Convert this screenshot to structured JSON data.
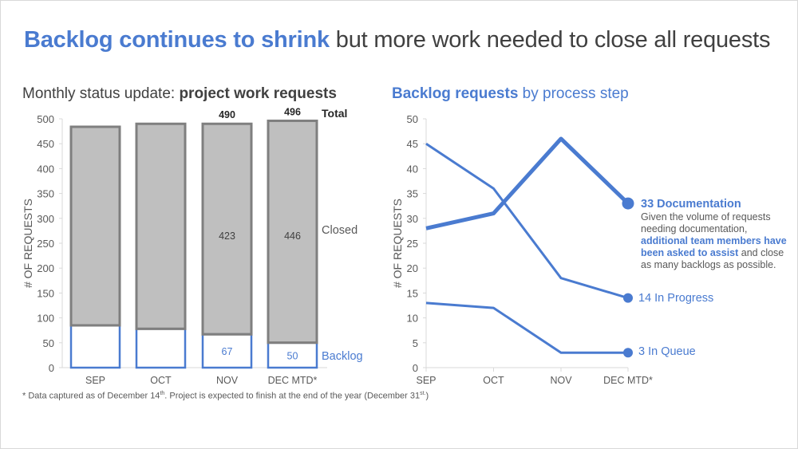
{
  "title": {
    "highlight": "Backlog continues to shrink",
    "rest": " but more work needed to close all requests"
  },
  "left_chart": {
    "subtitle_plain": "Monthly status update: ",
    "subtitle_bold": "project work requests",
    "ylabel": "# OF REQUESTS",
    "yticks": [
      "0",
      "50",
      "100",
      "150",
      "200",
      "250",
      "300",
      "350",
      "400",
      "450",
      "500"
    ],
    "categories": [
      "SEP",
      "OCT",
      "NOV",
      "DEC MTD*"
    ],
    "labels": {
      "total": "Total",
      "closed": "Closed",
      "backlog": "Backlog"
    },
    "total_labels": [
      "",
      "",
      "490",
      "496"
    ],
    "closed_labels": [
      "",
      "",
      "423",
      "446"
    ],
    "backlog_labels": [
      "",
      "",
      "67",
      "50"
    ]
  },
  "right_chart": {
    "subtitle_bold": "Backlog requests",
    "subtitle_plain": " by process step",
    "ylabel": "# OF REQUESTS",
    "yticks": [
      "0",
      "5",
      "10",
      "15",
      "20",
      "25",
      "30",
      "35",
      "40",
      "45",
      "50"
    ],
    "categories": [
      "SEP",
      "OCT",
      "NOV",
      "DEC MTD*"
    ],
    "end_labels": {
      "in_progress": "14 In Progress",
      "in_queue": "3 In Queue"
    },
    "annotation": {
      "head": "33 Documentation",
      "text1": "Given the volume of requests needing documentation, ",
      "emphasis": "additional team members have been asked to assist",
      "text2": " and close as many backlogs as possible."
    }
  },
  "footnote": {
    "part1": "* Data captured as of December 14",
    "sup1": "th",
    "part2": ". Project is expected to finish at the end of the year (December 31",
    "sup2": "st.",
    "part3": ")"
  },
  "colors": {
    "accent_blue": "#4a7bd0",
    "closed_fill": "#bfbfbf",
    "closed_border": "#7f7f7f",
    "text_dark": "#404040",
    "text_gray": "#595959",
    "axis": "#d9d9d9"
  },
  "chart_data": [
    {
      "type": "bar",
      "stacked": true,
      "title": "Monthly status update: project work requests",
      "xlabel": "",
      "ylabel": "# OF REQUESTS",
      "ylim": [
        0,
        500
      ],
      "categories": [
        "SEP",
        "OCT",
        "NOV",
        "DEC MTD*"
      ],
      "series": [
        {
          "name": "Backlog",
          "values": [
            85,
            78,
            67,
            50
          ]
        },
        {
          "name": "Closed",
          "values": [
            399,
            412,
            423,
            446
          ]
        }
      ],
      "totals": [
        484,
        490,
        490,
        496
      ],
      "legend": "direct labels on right (Total, Closed, Backlog)"
    },
    {
      "type": "line",
      "title": "Backlog requests by process step",
      "xlabel": "",
      "ylabel": "# OF REQUESTS",
      "ylim": [
        0,
        50
      ],
      "categories": [
        "SEP",
        "OCT",
        "NOV",
        "DEC MTD*"
      ],
      "series": [
        {
          "name": "Documentation",
          "values": [
            28,
            31,
            46,
            33
          ]
        },
        {
          "name": "In Progress",
          "values": [
            45,
            36,
            18,
            14
          ]
        },
        {
          "name": "In Queue",
          "values": [
            13,
            12,
            3,
            3
          ]
        }
      ],
      "annotations": [
        "33 Documentation",
        "14 In Progress",
        "3 In Queue"
      ]
    }
  ]
}
